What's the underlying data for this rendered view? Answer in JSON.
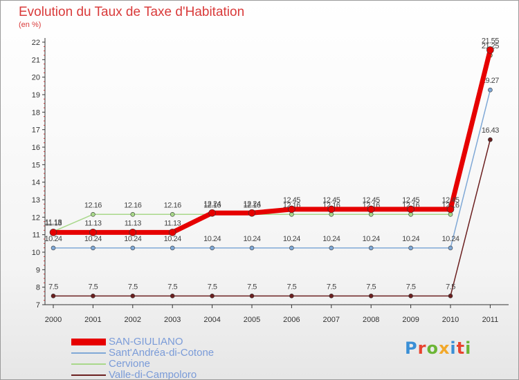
{
  "title": "Evolution du Taux de Taxe d'Habitation",
  "subtitle": "(en %)",
  "logo_text": "Proxiti",
  "logo_colors": [
    "#3a8fd6",
    "#e8432f",
    "#6bb535",
    "#f2a82a",
    "#3a8fd6",
    "#e8432f",
    "#6bb535"
  ],
  "chart_data": {
    "type": "line",
    "x": [
      "2000",
      "2001",
      "2002",
      "2003",
      "2004",
      "2005",
      "2006",
      "2007",
      "2008",
      "2009",
      "2010",
      "2011"
    ],
    "ylim": [
      7,
      22
    ],
    "yticks": [
      "7",
      "8",
      "9",
      "10",
      "11",
      "12",
      "13",
      "14",
      "15",
      "16",
      "17",
      "18",
      "19",
      "20",
      "21",
      "22"
    ],
    "grid": false,
    "legend_position": "bottom-left",
    "series": [
      {
        "name": "Valle-di-Campoloro",
        "color": "#6b1f1f",
        "values": [
          7.5,
          7.5,
          7.5,
          7.5,
          7.5,
          7.5,
          7.5,
          7.5,
          7.5,
          7.5,
          7.5,
          16.43
        ],
        "labels": [
          "7.5",
          "7.5",
          "7.5",
          "7.5",
          "7.5",
          "7.5",
          "7.5",
          "7.5",
          "7.5",
          "7.5",
          "7.5",
          "16.43"
        ]
      },
      {
        "name": "Sant'Andréa-di-Cotone",
        "color": "#7fa8d6",
        "values": [
          10.24,
          10.24,
          10.24,
          10.24,
          10.24,
          10.24,
          10.24,
          10.24,
          10.24,
          10.24,
          10.24,
          19.27
        ],
        "labels": [
          "10.24",
          "10.24",
          "10.24",
          "10.24",
          "10.24",
          "10.24",
          "10.24",
          "10.24",
          "10.24",
          "10.24",
          "10.24",
          "19.27"
        ]
      },
      {
        "name": "Cervione",
        "color": "#a8d88a",
        "values": [
          11.18,
          12.16,
          12.16,
          12.16,
          12.16,
          12.16,
          12.16,
          12.16,
          12.16,
          12.16,
          12.16,
          21.25
        ],
        "labels": [
          "11.18",
          "12.16",
          "12.16",
          "12.16",
          "12.16",
          "12.16",
          "12.16",
          "12.16",
          "12.16",
          "12.16",
          "12.16",
          "21.25"
        ]
      },
      {
        "name": "SAN-GIULIANO",
        "color": "#e60000",
        "values": [
          11.13,
          11.13,
          11.13,
          11.13,
          12.24,
          12.24,
          12.45,
          12.45,
          12.45,
          12.45,
          12.45,
          21.55
        ],
        "labels": [
          "11.13",
          "11.13",
          "11.13",
          "11.13",
          "12.24",
          "12.24",
          "12.45",
          "12.45",
          "12.45",
          "12.45",
          "12.45",
          "21.55"
        ]
      }
    ]
  },
  "legend": [
    {
      "name": "SAN-GIULIANO",
      "color": "#e60000"
    },
    {
      "name": "Sant'Andréa-di-Cotone",
      "color": "#7fa8d6"
    },
    {
      "name": "Cervione",
      "color": "#a8d88a"
    },
    {
      "name": "Valle-di-Campoloro",
      "color": "#6b1f1f"
    }
  ]
}
